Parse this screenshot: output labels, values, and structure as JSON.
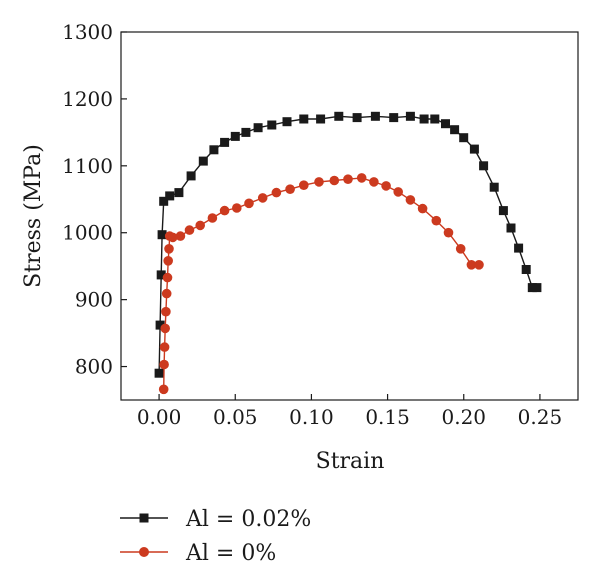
{
  "chart_data": {
    "type": "line",
    "xlabel": "Strain",
    "ylabel": "Stress (MPa)",
    "xlim": [
      -0.025,
      0.275
    ],
    "ylim": [
      750,
      1300
    ],
    "xticks": [
      "0.00",
      "0.05",
      "0.10",
      "0.15",
      "0.20",
      "0.25"
    ],
    "yticks": [
      "800",
      "900",
      "1000",
      "1100",
      "1200",
      "1300"
    ],
    "grid": false,
    "legend_position": "bottom-left",
    "series": [
      {
        "name": "Al = 0.02%",
        "color": "#1a1a1a",
        "marker": "square",
        "x": [
          0.0,
          0.0007,
          0.0014,
          0.002,
          0.003,
          0.007,
          0.013,
          0.021,
          0.029,
          0.036,
          0.043,
          0.05,
          0.057,
          0.065,
          0.074,
          0.084,
          0.095,
          0.106,
          0.118,
          0.13,
          0.142,
          0.154,
          0.165,
          0.174,
          0.181,
          0.188,
          0.194,
          0.2,
          0.207,
          0.213,
          0.22,
          0.226,
          0.231,
          0.236,
          0.241,
          0.245,
          0.248
        ],
        "y": [
          790,
          862,
          937,
          997,
          1047,
          1055,
          1060,
          1085,
          1107,
          1124,
          1135,
          1144,
          1150,
          1157,
          1161,
          1166,
          1170,
          1170,
          1174,
          1172,
          1174,
          1172,
          1174,
          1170,
          1170,
          1163,
          1154,
          1142,
          1125,
          1100,
          1068,
          1033,
          1007,
          977,
          945,
          918,
          918
        ]
      },
      {
        "name": "Al = 0%",
        "color": "#cc3a1f",
        "marker": "circle",
        "x": [
          0.003,
          0.0033,
          0.0036,
          0.004,
          0.0045,
          0.005,
          0.0055,
          0.006,
          0.0065,
          0.007,
          0.009,
          0.014,
          0.02,
          0.027,
          0.035,
          0.043,
          0.051,
          0.059,
          0.068,
          0.077,
          0.086,
          0.095,
          0.105,
          0.115,
          0.124,
          0.133,
          0.141,
          0.149,
          0.157,
          0.165,
          0.173,
          0.182,
          0.19,
          0.198,
          0.205,
          0.21
        ],
        "y": [
          766,
          803,
          829,
          857,
          882,
          909,
          933,
          958,
          976,
          995,
          993,
          995,
          1004,
          1011,
          1022,
          1033,
          1037,
          1044,
          1052,
          1060,
          1065,
          1071,
          1076,
          1078,
          1080,
          1082,
          1076,
          1070,
          1061,
          1049,
          1036,
          1018,
          1000,
          976,
          952,
          952
        ]
      }
    ]
  }
}
